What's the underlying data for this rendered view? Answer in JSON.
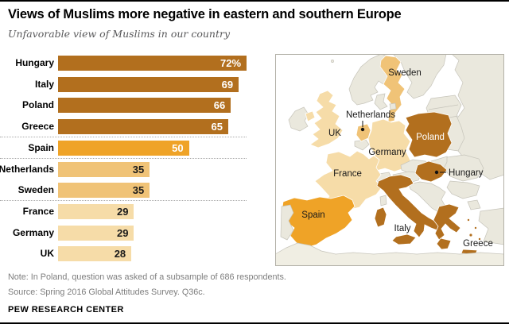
{
  "header": {
    "title": "Views of Muslims more negative in eastern and southern Europe",
    "subtitle": "Unfavorable view of Muslims in our country"
  },
  "chart_data": {
    "type": "bar",
    "title": "Unfavorable view of Muslims in our country",
    "orientation": "horizontal",
    "categories": [
      "Hungary",
      "Italy",
      "Poland",
      "Greece",
      "Spain",
      "Netherlands",
      "Sweden",
      "France",
      "Germany",
      "UK"
    ],
    "values": [
      72,
      69,
      66,
      65,
      50,
      35,
      35,
      29,
      29,
      28
    ],
    "xlim": [
      0,
      75
    ],
    "unit": "percent",
    "grid": "off",
    "rows": [
      {
        "label": "Hungary",
        "value": 72,
        "display": "72%",
        "fill": "#B26F1E",
        "value_color": "#ffffff"
      },
      {
        "label": "Italy",
        "value": 69,
        "display": "69",
        "fill": "#B26F1E",
        "value_color": "#ffffff"
      },
      {
        "label": "Poland",
        "value": 66,
        "display": "66",
        "fill": "#B26F1E",
        "value_color": "#ffffff"
      },
      {
        "label": "Greece",
        "value": 65,
        "display": "65",
        "fill": "#B26F1E",
        "value_color": "#ffffff"
      },
      {
        "label": "Spain",
        "value": 50,
        "display": "50",
        "fill": "#EFA327",
        "value_color": "#ffffff"
      },
      {
        "label": "Netherlands",
        "value": 35,
        "display": "35",
        "fill": "#F0C377",
        "value_color": "#1a1a1a"
      },
      {
        "label": "Sweden",
        "value": 35,
        "display": "35",
        "fill": "#F0C377",
        "value_color": "#1a1a1a"
      },
      {
        "label": "France",
        "value": 29,
        "display": "29",
        "fill": "#F6DCA8",
        "value_color": "#1a1a1a"
      },
      {
        "label": "Germany",
        "value": 29,
        "display": "29",
        "fill": "#F6DCA8",
        "value_color": "#1a1a1a"
      },
      {
        "label": "UK",
        "value": 28,
        "display": "28",
        "fill": "#F6DCA8",
        "value_color": "#1a1a1a"
      }
    ],
    "separators_before": [
      4,
      5,
      7
    ]
  },
  "map": {
    "colors": {
      "tier1_dark": "#B26F1E",
      "tier2_medium": "#EFA327",
      "tier3_tan": "#F0C377",
      "tier4_light": "#F6DCA8",
      "unsurveyed_land": "#EAE8DD",
      "africa_land": "#F0EEE3",
      "sea": "#ffffff"
    },
    "labels": [
      {
        "text": "Sweden",
        "color": "#1a1a1a"
      },
      {
        "text": "Netherlands",
        "color": "#1a1a1a"
      },
      {
        "text": "UK",
        "color": "#1a1a1a"
      },
      {
        "text": "Germany",
        "color": "#1a1a1a"
      },
      {
        "text": "Poland",
        "color": "#ffffff"
      },
      {
        "text": "France",
        "color": "#1a1a1a"
      },
      {
        "text": "Hungary",
        "color": "#1a1a1a"
      },
      {
        "text": "Spain",
        "color": "#1a1a1a"
      },
      {
        "text": "Italy",
        "color": "#1a1a1a"
      },
      {
        "text": "Greece",
        "color": "#1a1a1a"
      }
    ]
  },
  "footer": {
    "note": "Note: In Poland, question was asked of a subsample of 686 respondents.",
    "source": "Source: Spring 2016 Global Attitudes Survey. Q36c.",
    "brand": "PEW RESEARCH CENTER"
  }
}
